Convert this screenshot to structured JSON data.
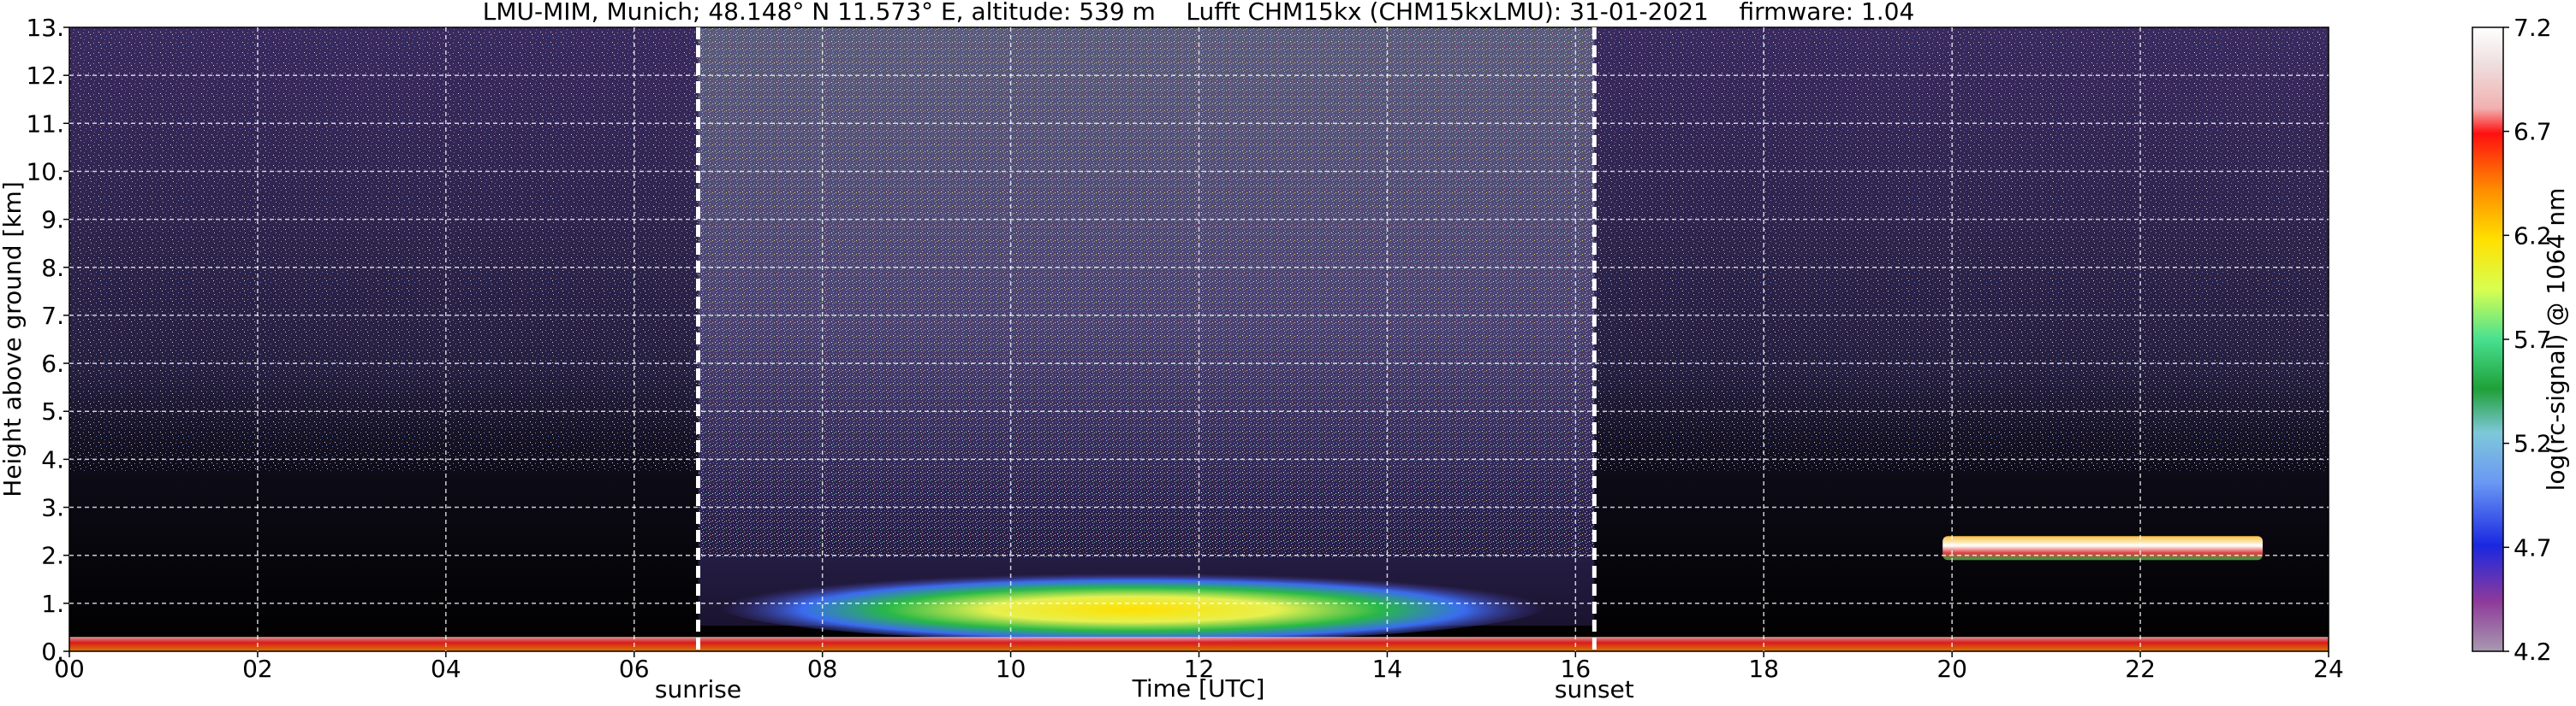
{
  "chart_data": {
    "type": "heatmap",
    "title": "LMU-MIM, Munich; 48.148° N 11.573° E, altitude: 539 m    Lufft CHM15kx (CHM15kxLMU): 31-01-2021    firmware: 1.04",
    "xlabel": "Time [UTC]",
    "ylabel": "Height above ground [km]",
    "xlim": [
      0,
      24
    ],
    "ylim": [
      0,
      13
    ],
    "xticks": [
      "00",
      "02",
      "04",
      "06",
      "08",
      "10",
      "12",
      "14",
      "16",
      "18",
      "20",
      "22",
      "24"
    ],
    "yticks": [
      "0.",
      "1.",
      "2.",
      "3.",
      "4.",
      "5.",
      "6.",
      "7.",
      "8.",
      "9.",
      "10.",
      "11.",
      "12.",
      "13."
    ],
    "grid": true,
    "events": [
      {
        "label": "sunrise",
        "time_utc": 6.68
      },
      {
        "label": "sunset",
        "time_utc": 16.2
      }
    ],
    "colorbar": {
      "label": "log(rc-signal) @ 1064 nm",
      "range": [
        4.2,
        7.2
      ],
      "ticks": [
        "4.2",
        "4.7",
        "5.2",
        "5.7",
        "6.2",
        "6.7",
        "7.2"
      ]
    },
    "features": [
      {
        "kind": "aerosol_layer",
        "time_utc": [
          6.9,
          15.7
        ],
        "height_km": [
          0.2,
          1.7
        ],
        "peak_log_signal": 6.1
      },
      {
        "kind": "surface_layer",
        "time_utc": [
          0,
          24
        ],
        "height_km": [
          0,
          0.3
        ],
        "peak_log_signal": 6.5
      },
      {
        "kind": "cloud_layer",
        "time_utc": [
          19.9,
          23.3
        ],
        "height_km": [
          1.9,
          2.4
        ],
        "peak_log_signal": 7.0
      }
    ]
  }
}
